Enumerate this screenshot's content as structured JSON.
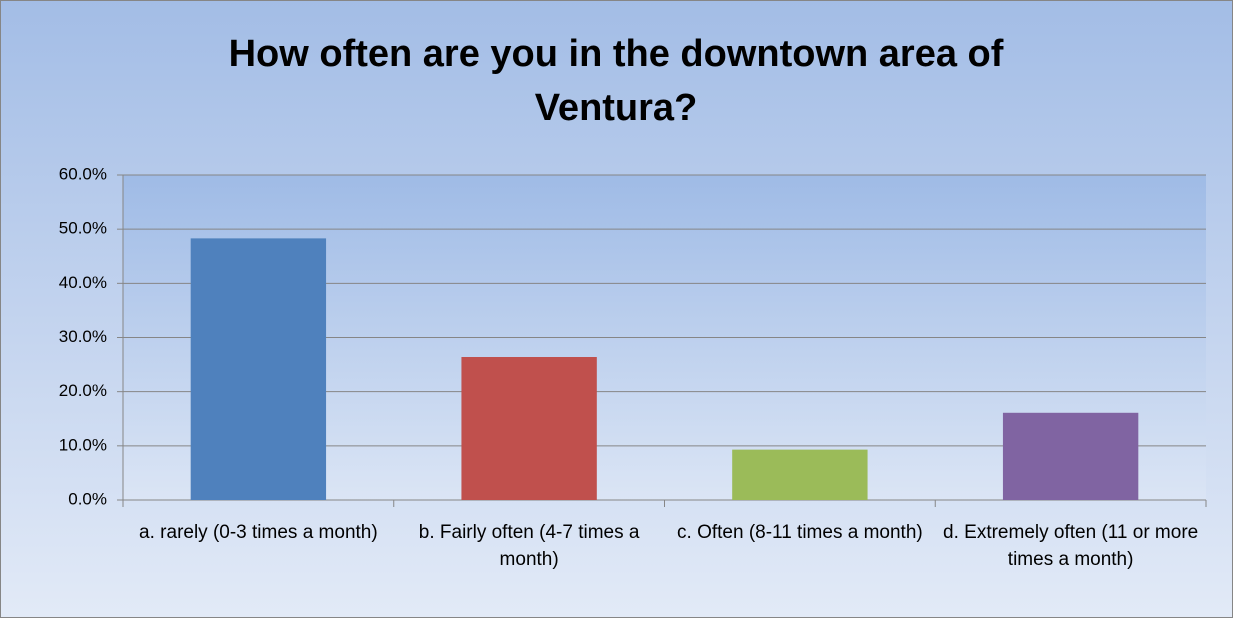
{
  "chart_data": {
    "type": "bar",
    "title": "How often are you in the downtown area of Ventura?",
    "categories": [
      "a. rarely (0-3 times a month)",
      "b. Fairly often (4-7 times a month)",
      "c. Often (8-11 times a month)",
      "d. Extremely often (11 or more times a month)"
    ],
    "values": [
      48.3,
      26.4,
      9.3,
      16.1
    ],
    "colors": [
      "#4f81bd",
      "#c0504d",
      "#9bbb59",
      "#8064a2"
    ],
    "ylim": [
      0,
      60
    ],
    "yticks": [
      {
        "value": 0,
        "label": "0.0%"
      },
      {
        "value": 10,
        "label": "10.0%"
      },
      {
        "value": 20,
        "label": "20.0%"
      },
      {
        "value": 30,
        "label": "30.0%"
      },
      {
        "value": 40,
        "label": "40.0%"
      },
      {
        "value": 50,
        "label": "50.0%"
      },
      {
        "value": 60,
        "label": "60.0%"
      }
    ],
    "grid": true
  }
}
